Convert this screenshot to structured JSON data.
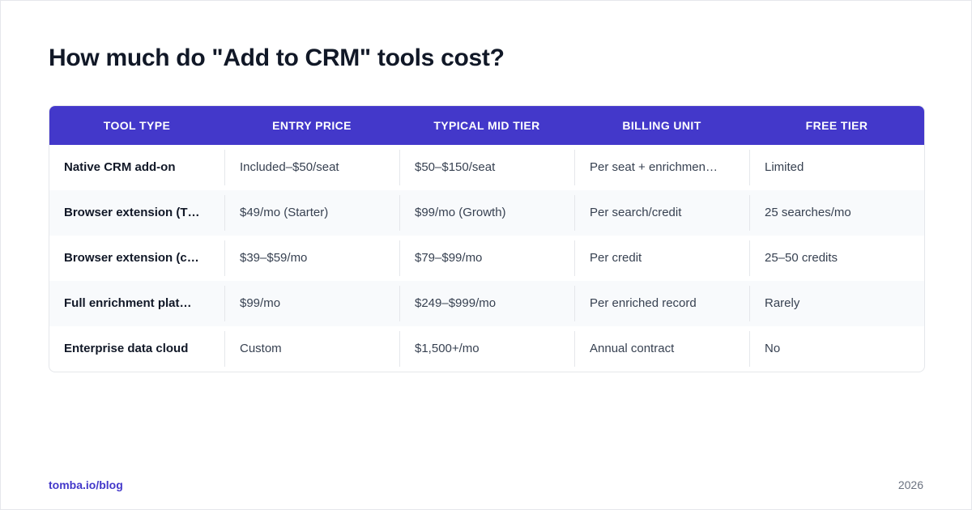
{
  "title": "How much do \"Add to CRM\" tools cost?",
  "table": {
    "headers": [
      "TOOL TYPE",
      "ENTRY PRICE",
      "TYPICAL MID TIER",
      "BILLING UNIT",
      "FREE TIER"
    ],
    "rows": [
      [
        "Native CRM add-on",
        "Included–$50/seat",
        "$50–$150/seat",
        "Per seat + enrichmen…",
        "Limited"
      ],
      [
        "Browser extension (T…",
        "$49/mo (Starter)",
        "$99/mo (Growth)",
        "Per search/credit",
        "25 searches/mo"
      ],
      [
        "Browser extension (c…",
        "$39–$59/mo",
        "$79–$99/mo",
        "Per credit",
        "25–50 credits"
      ],
      [
        "Full enrichment plat…",
        "$99/mo",
        "$249–$999/mo",
        "Per enriched record",
        "Rarely"
      ],
      [
        "Enterprise data cloud",
        "Custom",
        "$1,500+/mo",
        "Annual contract",
        "No"
      ]
    ]
  },
  "footer": {
    "link": "tomba.io/blog",
    "year": "2026"
  },
  "colors": {
    "accent": "#4338ca",
    "title": "#111827",
    "row_alt": "#f8fafc"
  }
}
